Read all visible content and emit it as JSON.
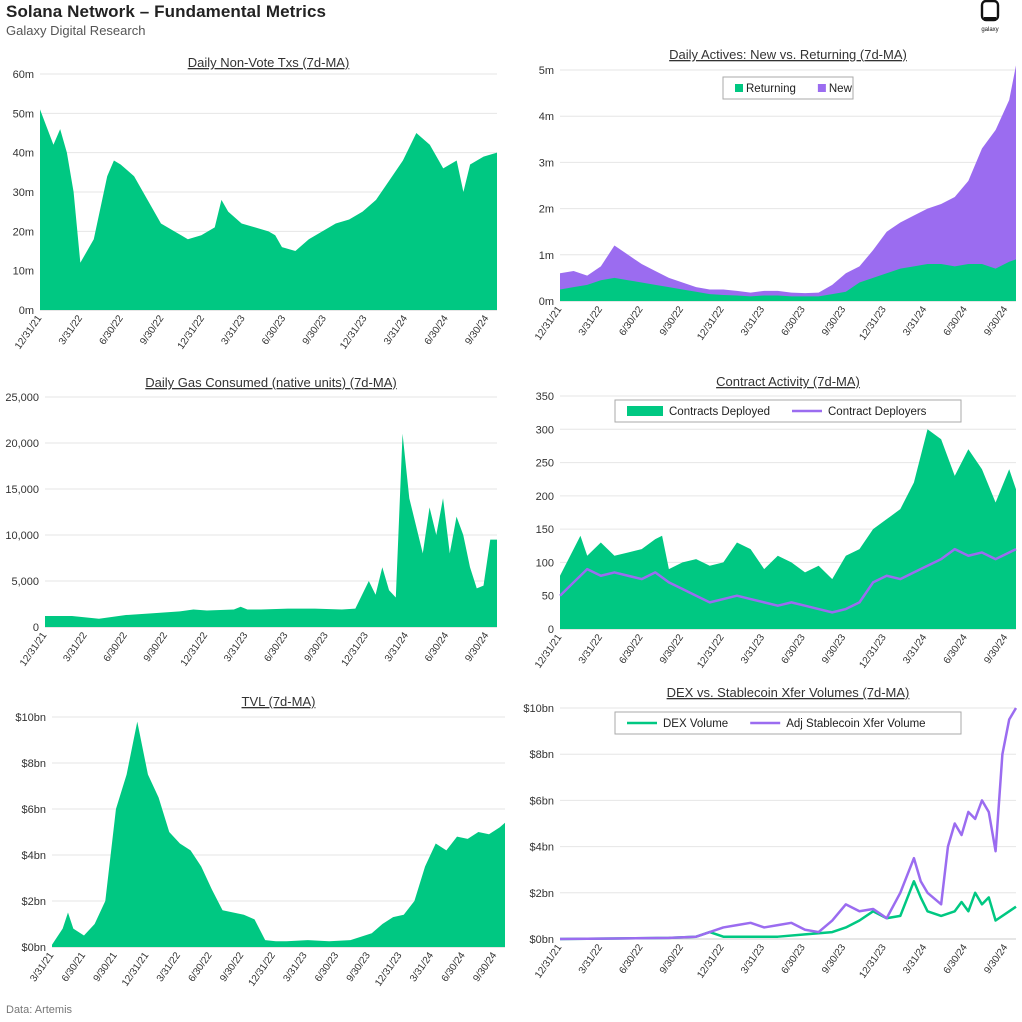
{
  "header": {
    "title": "Solana Network – Fundamental Metrics",
    "subtitle": "Galaxy Digital Research",
    "logo_text": "galaxy"
  },
  "footer": {
    "source": "Data: Artemis"
  },
  "colors": {
    "green": "#00c882",
    "purple": "#9b6cf0",
    "grid": "#e6e6e6",
    "axis": "#cccccc",
    "text": "#333333"
  },
  "chart_data": [
    {
      "id": "non-vote-txs",
      "type": "area",
      "title": "Daily Non-Vote Txs (7d-MA)",
      "ylabel": "",
      "xlabel": "",
      "ylim": [
        0,
        60000000
      ],
      "yticks": [
        "0m",
        "10m",
        "20m",
        "30m",
        "40m",
        "50m",
        "60m"
      ],
      "xticks": [
        "12/31/21",
        "3/31/22",
        "6/30/22",
        "9/30/22",
        "12/31/22",
        "3/31/23",
        "6/30/23",
        "9/30/23",
        "12/31/23",
        "3/31/24",
        "6/30/24",
        "9/30/24"
      ],
      "x_range": [
        0,
        34
      ],
      "series": [
        {
          "name": "Non-Vote Txs",
          "color": "#00c882",
          "x": [
            0,
            1,
            1.5,
            2,
            2.5,
            3,
            4,
            5,
            5.5,
            6,
            7,
            8,
            9,
            10,
            10.5,
            11,
            12,
            13,
            13.5,
            14,
            15,
            16,
            17,
            17.5,
            18,
            19,
            20,
            21,
            22,
            23,
            24,
            25,
            26,
            27,
            28,
            29,
            30,
            31,
            31.5,
            32,
            33,
            34
          ],
          "y": [
            51,
            42,
            46,
            40,
            30,
            12,
            18,
            34,
            38,
            37,
            34,
            28,
            22,
            20,
            19,
            18,
            19,
            21,
            28,
            25,
            22,
            21,
            20,
            19,
            16,
            15,
            18,
            20,
            22,
            23,
            25,
            28,
            33,
            38,
            45,
            42,
            36,
            38,
            30,
            37,
            39,
            40
          ]
        }
      ]
    },
    {
      "id": "daily-actives",
      "type": "area",
      "stacked": true,
      "title": "Daily Actives: New vs. Returning (7d-MA)",
      "ylim": [
        0,
        5000000
      ],
      "yticks": [
        "0m",
        "1m",
        "2m",
        "3m",
        "4m",
        "5m"
      ],
      "xticks": [
        "12/31/21",
        "3/31/22",
        "6/30/22",
        "9/30/22",
        "12/31/22",
        "3/31/23",
        "6/30/23",
        "9/30/23",
        "12/31/23",
        "3/31/24",
        "6/30/24",
        "9/30/24"
      ],
      "x_range": [
        0,
        33.5
      ],
      "legend": [
        "Returning",
        "New"
      ],
      "legend_position": "top-center",
      "series": [
        {
          "name": "Returning",
          "color": "#00c882",
          "x": [
            0,
            1,
            2,
            3,
            4,
            5,
            6,
            7,
            8,
            9,
            10,
            11,
            12,
            13,
            14,
            15,
            16,
            17,
            18,
            19,
            20,
            21,
            22,
            23,
            24,
            25,
            26,
            27,
            28,
            29,
            30,
            31,
            32,
            33,
            33.5
          ],
          "y": [
            0.25,
            0.3,
            0.35,
            0.45,
            0.5,
            0.45,
            0.4,
            0.35,
            0.3,
            0.25,
            0.2,
            0.15,
            0.13,
            0.12,
            0.1,
            0.12,
            0.12,
            0.1,
            0.1,
            0.1,
            0.15,
            0.2,
            0.4,
            0.5,
            0.6,
            0.7,
            0.75,
            0.8,
            0.8,
            0.75,
            0.8,
            0.8,
            0.7,
            0.85,
            0.9
          ]
        },
        {
          "name": "New",
          "color": "#9b6cf0",
          "x": [
            0,
            1,
            2,
            3,
            4,
            5,
            6,
            7,
            8,
            9,
            10,
            11,
            12,
            13,
            14,
            15,
            16,
            17,
            18,
            19,
            20,
            21,
            22,
            23,
            24,
            25,
            26,
            27,
            28,
            29,
            30,
            31,
            32,
            33,
            33.5
          ],
          "y": [
            0.35,
            0.35,
            0.2,
            0.3,
            0.7,
            0.55,
            0.4,
            0.3,
            0.2,
            0.15,
            0.1,
            0.1,
            0.12,
            0.1,
            0.08,
            0.1,
            0.1,
            0.08,
            0.07,
            0.08,
            0.2,
            0.4,
            0.35,
            0.6,
            0.9,
            1.0,
            1.1,
            1.2,
            1.3,
            1.5,
            1.8,
            2.5,
            3.0,
            3.5,
            4.2
          ]
        }
      ]
    },
    {
      "id": "gas-consumed",
      "type": "area",
      "title": "Daily Gas Consumed (native units) (7d-MA)",
      "ylim": [
        0,
        25000
      ],
      "yticks": [
        "0",
        "5,000",
        "10,000",
        "15,000",
        "20,000",
        "25,000"
      ],
      "xticks": [
        "12/31/21",
        "3/31/22",
        "6/30/22",
        "9/30/22",
        "12/31/22",
        "3/31/23",
        "6/30/23",
        "9/30/23",
        "12/31/23",
        "3/31/24",
        "6/30/24",
        "9/30/24"
      ],
      "x_range": [
        0,
        33.5
      ],
      "series": [
        {
          "name": "Gas Consumed",
          "color": "#00c882",
          "x": [
            0,
            2,
            4,
            6,
            8,
            10,
            11,
            12,
            14,
            14.5,
            15,
            16,
            18,
            20,
            22,
            23,
            24,
            24.5,
            25,
            25.5,
            26,
            26.5,
            27,
            27.5,
            28,
            28.5,
            29,
            29.5,
            30,
            30.5,
            31,
            31.5,
            32,
            32.5,
            33,
            33.5
          ],
          "y": [
            1200,
            1200,
            900,
            1300,
            1500,
            1700,
            1900,
            1800,
            1900,
            2200,
            1900,
            1900,
            2000,
            2000,
            1900,
            2000,
            5000,
            3500,
            6500,
            4000,
            3200,
            21000,
            14000,
            11000,
            8000,
            13000,
            10000,
            14000,
            8000,
            12000,
            10000,
            6500,
            4200,
            4500,
            9500,
            9500
          ]
        }
      ]
    },
    {
      "id": "contract-activity",
      "type": "area",
      "title": "Contract Activity (7d-MA)",
      "ylim": [
        0,
        350
      ],
      "yticks": [
        "0",
        "50",
        "100",
        "150",
        "200",
        "250",
        "300",
        "350"
      ],
      "xticks": [
        "12/31/21",
        "3/31/22",
        "6/30/22",
        "9/30/22",
        "12/31/22",
        "3/31/23",
        "6/30/23",
        "9/30/23",
        "12/31/23",
        "3/31/24",
        "6/30/24",
        "9/30/24"
      ],
      "x_range": [
        0,
        33.5
      ],
      "legend": [
        "Contracts Deployed",
        "Contract Deployers"
      ],
      "legend_position": "top-center",
      "series": [
        {
          "name": "Contracts Deployed",
          "color": "#00c882",
          "kind": "area",
          "x": [
            0,
            1,
            1.5,
            2,
            3,
            4,
            5,
            6,
            7,
            7.5,
            8,
            9,
            10,
            11,
            12,
            13,
            14,
            15,
            16,
            17,
            18,
            19,
            20,
            21,
            22,
            23,
            24,
            25,
            26,
            27,
            28,
            29,
            30,
            31,
            32,
            33,
            33.5
          ],
          "y": [
            80,
            120,
            140,
            110,
            130,
            110,
            115,
            120,
            135,
            140,
            90,
            100,
            105,
            95,
            100,
            130,
            120,
            90,
            110,
            100,
            85,
            95,
            75,
            110,
            120,
            150,
            165,
            180,
            220,
            300,
            285,
            230,
            270,
            240,
            190,
            240,
            210
          ]
        },
        {
          "name": "Contract Deployers",
          "color": "#9b6cf0",
          "kind": "line",
          "x": [
            0,
            1,
            2,
            3,
            4,
            5,
            6,
            7,
            8,
            9,
            10,
            11,
            12,
            13,
            14,
            15,
            16,
            17,
            18,
            19,
            20,
            21,
            22,
            23,
            24,
            25,
            26,
            27,
            28,
            29,
            30,
            31,
            32,
            33,
            33.5
          ],
          "y": [
            50,
            70,
            90,
            80,
            85,
            80,
            75,
            85,
            70,
            60,
            50,
            40,
            45,
            50,
            45,
            40,
            35,
            40,
            35,
            30,
            25,
            30,
            40,
            70,
            80,
            75,
            85,
            95,
            105,
            120,
            110,
            115,
            105,
            115,
            120
          ]
        }
      ]
    },
    {
      "id": "tvl",
      "type": "area",
      "title": "TVL (7d-MA)",
      "ylim": [
        0,
        10
      ],
      "yticks": [
        "$0bn",
        "$2bn",
        "$4bn",
        "$6bn",
        "$8bn",
        "$10bn"
      ],
      "xticks": [
        "3/31/21",
        "6/30/21",
        "9/30/21",
        "12/31/21",
        "3/31/22",
        "6/30/22",
        "9/30/22",
        "12/31/22",
        "3/31/23",
        "6/30/23",
        "9/30/23",
        "12/31/23",
        "3/31/24",
        "6/30/24",
        "9/30/24"
      ],
      "x_range": [
        0,
        42.5
      ],
      "series": [
        {
          "name": "TVL",
          "color": "#00c882",
          "x": [
            0,
            1,
            1.5,
            2,
            3,
            4,
            5,
            6,
            7,
            8,
            9,
            10,
            11,
            12,
            13,
            14,
            15,
            16,
            17,
            18,
            19,
            20,
            21,
            22,
            24,
            26,
            28,
            30,
            31,
            32,
            33,
            34,
            35,
            36,
            37,
            38,
            39,
            40,
            41,
            42,
            42.5
          ],
          "y": [
            0.1,
            0.8,
            1.5,
            0.8,
            0.5,
            1.0,
            2.0,
            6.0,
            7.5,
            9.8,
            7.5,
            6.5,
            5.0,
            4.5,
            4.2,
            3.5,
            2.5,
            1.6,
            1.5,
            1.4,
            1.2,
            0.3,
            0.25,
            0.25,
            0.3,
            0.25,
            0.3,
            0.6,
            1.0,
            1.3,
            1.4,
            2.0,
            3.5,
            4.5,
            4.2,
            4.8,
            4.7,
            5.0,
            4.9,
            5.2,
            5.4
          ]
        }
      ]
    },
    {
      "id": "dex-stablecoin",
      "type": "line",
      "title": "DEX vs. Stablecoin Xfer Volumes (7d-MA)",
      "ylim": [
        0,
        10
      ],
      "yticks": [
        "$0bn",
        "$2bn",
        "$4bn",
        "$6bn",
        "$8bn",
        "$10bn"
      ],
      "xticks": [
        "12/31/21",
        "3/31/22",
        "6/30/22",
        "9/30/22",
        "12/31/22",
        "3/31/23",
        "6/30/23",
        "9/30/23",
        "12/31/23",
        "3/31/24",
        "6/30/24",
        "9/30/24"
      ],
      "x_range": [
        0,
        33.5
      ],
      "legend": [
        "DEX Volume",
        "Adj Stablecoin Xfer Volume"
      ],
      "legend_position": "top-center",
      "series": [
        {
          "name": "DEX Volume",
          "color": "#00c882",
          "x": [
            0,
            4,
            8,
            10,
            11,
            12,
            14,
            16,
            18,
            20,
            21,
            22,
            23,
            24,
            25,
            26,
            26.5,
            27,
            28,
            29,
            29.5,
            30,
            30.5,
            31,
            31.5,
            32,
            33,
            33.5
          ],
          "y": [
            0,
            0.02,
            0.05,
            0.1,
            0.3,
            0.1,
            0.1,
            0.1,
            0.2,
            0.3,
            0.5,
            0.8,
            1.2,
            0.9,
            1.0,
            2.5,
            1.8,
            1.2,
            1.0,
            1.2,
            1.6,
            1.2,
            2.0,
            1.5,
            1.8,
            0.8,
            1.2,
            1.4
          ]
        },
        {
          "name": "Adj Stablecoin Xfer Volume",
          "color": "#9b6cf0",
          "x": [
            0,
            4,
            8,
            10,
            12,
            13,
            14,
            15,
            16,
            17,
            18,
            19,
            20,
            21,
            22,
            23,
            24,
            25,
            26,
            26.5,
            27,
            28,
            28.5,
            29,
            29.5,
            30,
            30.5,
            31,
            31.5,
            32,
            32.5,
            33,
            33.5
          ],
          "y": [
            0,
            0.02,
            0.05,
            0.1,
            0.5,
            0.6,
            0.7,
            0.5,
            0.6,
            0.7,
            0.4,
            0.3,
            0.8,
            1.5,
            1.2,
            1.3,
            0.9,
            2.0,
            3.5,
            2.5,
            2.0,
            1.5,
            4.0,
            5.0,
            4.5,
            5.5,
            5.2,
            6.0,
            5.5,
            3.8,
            8.0,
            9.5,
            10.0
          ]
        }
      ]
    }
  ]
}
